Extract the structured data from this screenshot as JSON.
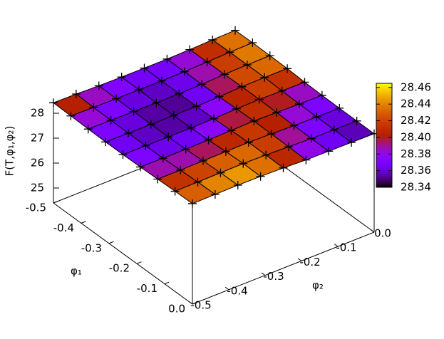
{
  "chart_data": {
    "type": "surface3d",
    "xlabel": "φ₁",
    "ylabel": "φ₂",
    "zlabel": "F(T,φ₁,φ₂)",
    "x": [
      -0.5,
      -0.4375,
      -0.375,
      -0.3125,
      -0.25,
      -0.1875,
      -0.125,
      -0.0625,
      0
    ],
    "y": [
      -0.5,
      -0.4375,
      -0.375,
      -0.3125,
      -0.25,
      -0.1875,
      -0.125,
      -0.0625,
      0
    ],
    "z": [
      [
        28.42,
        28.41,
        28.38,
        28.37,
        28.37,
        28.37,
        28.39,
        28.42,
        28.44
      ],
      [
        28.4,
        28.38,
        28.37,
        28.365,
        28.36,
        28.37,
        28.4,
        28.43,
        28.45
      ],
      [
        28.38,
        28.37,
        28.36,
        28.35,
        28.355,
        28.37,
        28.41,
        28.43,
        28.44
      ],
      [
        28.37,
        28.36,
        28.355,
        28.35,
        28.355,
        28.38,
        28.42,
        28.43,
        28.43
      ],
      [
        28.37,
        28.36,
        28.355,
        28.355,
        28.37,
        28.4,
        28.42,
        28.4,
        28.39
      ],
      [
        28.38,
        28.37,
        28.37,
        28.38,
        28.4,
        28.42,
        28.4,
        28.38,
        28.37
      ],
      [
        28.4,
        28.4,
        28.41,
        28.42,
        28.43,
        28.41,
        28.38,
        28.37,
        28.36
      ],
      [
        28.42,
        28.43,
        28.44,
        28.45,
        28.43,
        28.4,
        28.37,
        28.36,
        28.355
      ],
      [
        28.43,
        28.44,
        28.45,
        28.44,
        28.42,
        28.38,
        28.37,
        28.36,
        28.35
      ]
    ],
    "xlim": [
      -0.5,
      0
    ],
    "xticks": [
      -0.5,
      -0.4,
      -0.3,
      -0.2,
      -0.1,
      {
        "value": 0,
        "label": "0.0"
      }
    ],
    "ylim": [
      -0.5,
      0
    ],
    "yticks": [
      -0.5,
      -0.4,
      -0.3,
      -0.2,
      -0.1,
      {
        "value": 0,
        "label": "0.0"
      }
    ],
    "zlim": [
      24.4,
      28.5
    ],
    "zticks": [
      25,
      26,
      27,
      28
    ],
    "cblim": [
      28.34,
      28.465
    ],
    "cbticks": [
      28.34,
      28.36,
      28.38,
      {
        "value": 28.4,
        "label": "28.40"
      },
      28.42,
      28.44,
      28.46
    ],
    "palette": "rgbformulae 7,5,15",
    "marker": "+"
  }
}
